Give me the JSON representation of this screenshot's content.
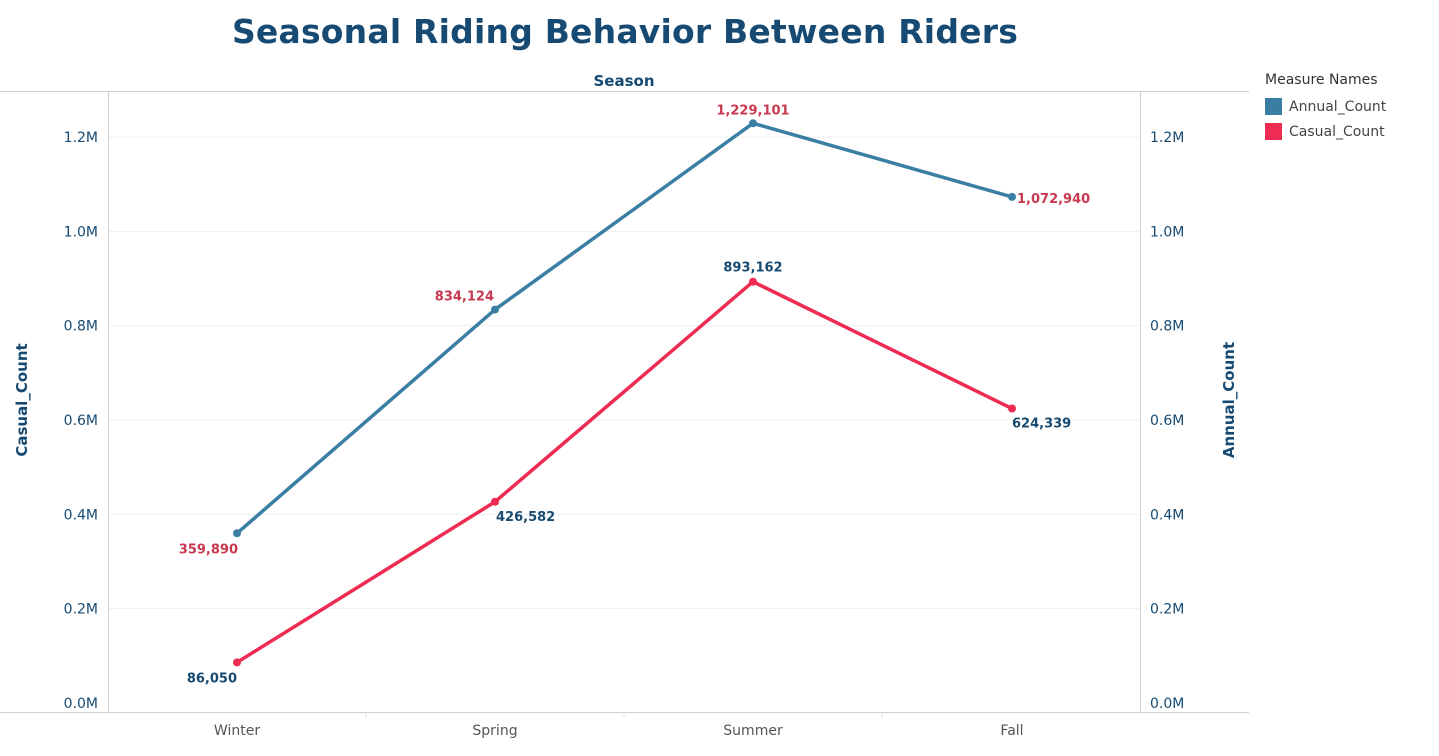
{
  "chart_data": {
    "type": "line",
    "title": "Seasonal Riding Behavior Between Riders",
    "column_header": "Season",
    "categories": [
      "Winter",
      "Spring",
      "Summer",
      "Fall"
    ],
    "ylabel_left": "Casual_Count",
    "ylabel_right": "Annual_Count",
    "ylim": [
      0,
      1300000
    ],
    "yticks": [
      0,
      200000,
      400000,
      600000,
      800000,
      1000000,
      1200000
    ],
    "ytick_labels": [
      "0.0M",
      "0.2M",
      "0.4M",
      "0.6M",
      "0.8M",
      "1.0M",
      "1.2M"
    ],
    "grid": true,
    "legend_title": "Measure Names",
    "legend_position": "top-right",
    "series": [
      {
        "name": "Annual_Count",
        "color": "#3a7fa3",
        "label_color": "#c8384f",
        "values": [
          359890,
          834124,
          1229101,
          1072940
        ],
        "labels": [
          "359,890",
          "834,124",
          "1,229,101",
          "1,072,940"
        ]
      },
      {
        "name": "Casual_Count",
        "color": "#ee2b52",
        "label_color": "#174a70",
        "values": [
          86050,
          426582,
          893162,
          624339
        ],
        "labels": [
          "86,050",
          "426,582",
          "893,162",
          "624,339"
        ]
      }
    ]
  }
}
